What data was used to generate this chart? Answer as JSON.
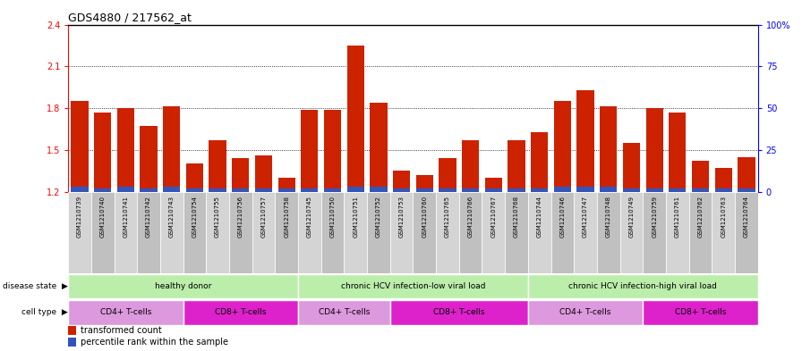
{
  "title": "GDS4880 / 217562_at",
  "samples": [
    "GSM1210739",
    "GSM1210740",
    "GSM1210741",
    "GSM1210742",
    "GSM1210743",
    "GSM1210754",
    "GSM1210755",
    "GSM1210756",
    "GSM1210757",
    "GSM1210758",
    "GSM1210745",
    "GSM1210750",
    "GSM1210751",
    "GSM1210752",
    "GSM1210753",
    "GSM1210760",
    "GSM1210765",
    "GSM1210766",
    "GSM1210767",
    "GSM1210768",
    "GSM1210744",
    "GSM1210746",
    "GSM1210747",
    "GSM1210748",
    "GSM1210749",
    "GSM1210759",
    "GSM1210761",
    "GSM1210762",
    "GSM1210763",
    "GSM1210764"
  ],
  "transformed_count": [
    1.85,
    1.77,
    1.8,
    1.67,
    1.81,
    1.4,
    1.57,
    1.44,
    1.46,
    1.3,
    1.79,
    1.79,
    2.25,
    1.84,
    1.35,
    1.32,
    1.44,
    1.57,
    1.3,
    1.57,
    1.63,
    1.85,
    1.93,
    1.81,
    1.55,
    1.8,
    1.77,
    1.42,
    1.37,
    1.45
  ],
  "percentile_rank": [
    3,
    2,
    3,
    2,
    3,
    2,
    2,
    2,
    2,
    2,
    2,
    2,
    3,
    3,
    2,
    2,
    2,
    2,
    2,
    2,
    2,
    3,
    3,
    3,
    2,
    2,
    2,
    2,
    2,
    2
  ],
  "ylim_left": [
    1.2,
    2.4
  ],
  "ylim_right": [
    0,
    100
  ],
  "yticks_left": [
    1.2,
    1.5,
    1.8,
    2.1,
    2.4
  ],
  "yticks_right": [
    0,
    25,
    50,
    75,
    100
  ],
  "ytick_labels_right": [
    "0",
    "25",
    "50",
    "75",
    "100%"
  ],
  "bar_color": "#cc2200",
  "percentile_color": "#3355bb",
  "grid_color": "#000000",
  "disease_state_groups": [
    {
      "label": "healthy donor",
      "start": 0,
      "end": 9
    },
    {
      "label": "chronic HCV infection-low viral load",
      "start": 10,
      "end": 19
    },
    {
      "label": "chronic HCV infection-high viral load",
      "start": 20,
      "end": 29
    }
  ],
  "cell_type_groups": [
    {
      "label": "CD4+ T-cells",
      "start": 0,
      "end": 4
    },
    {
      "label": "CD8+ T-cells",
      "start": 5,
      "end": 9
    },
    {
      "label": "CD4+ T-cells",
      "start": 10,
      "end": 13
    },
    {
      "label": "CD8+ T-cells",
      "start": 14,
      "end": 19
    },
    {
      "label": "CD4+ T-cells",
      "start": 20,
      "end": 24
    },
    {
      "label": "CD8+ T-cells",
      "start": 25,
      "end": 29
    }
  ],
  "disease_color": "#bbeeaa",
  "cd4_color": "#dd99dd",
  "cd8_color": "#dd22cc",
  "xtick_bg_light": "#d4d4d4",
  "xtick_bg_dark": "#c0c0c0"
}
